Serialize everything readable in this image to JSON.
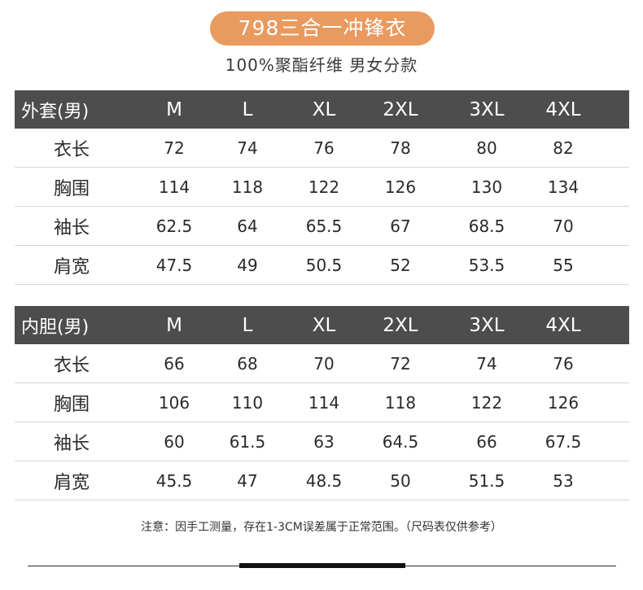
{
  "title": "798三合一冲锋衣",
  "subtitle": "100%聚酯纤维 男女分款",
  "colors": {
    "title_pill": "#e99a5f",
    "header_bar": "#4d4d4d"
  },
  "tables": [
    {
      "header": [
        "外套(男)",
        "M",
        "L",
        "XL",
        "2XL",
        "3XL",
        "4XL"
      ],
      "rows": [
        [
          "衣长",
          "72",
          "74",
          "76",
          "78",
          "80",
          "82"
        ],
        [
          "胸围",
          "114",
          "118",
          "122",
          "126",
          "130",
          "134"
        ],
        [
          "袖长",
          "62.5",
          "64",
          "65.5",
          "67",
          "68.5",
          "70"
        ],
        [
          "肩宽",
          "47.5",
          "49",
          "50.5",
          "52",
          "53.5",
          "55"
        ]
      ]
    },
    {
      "header": [
        "内胆(男)",
        "M",
        "L",
        "XL",
        "2XL",
        "3XL",
        "4XL"
      ],
      "rows": [
        [
          "衣长",
          "66",
          "68",
          "70",
          "72",
          "74",
          "76"
        ],
        [
          "胸围",
          "106",
          "110",
          "114",
          "118",
          "122",
          "126"
        ],
        [
          "袖长",
          "60",
          "61.5",
          "63",
          "64.5",
          "66",
          "67.5"
        ],
        [
          "肩宽",
          "45.5",
          "47",
          "48.5",
          "50",
          "51.5",
          "53"
        ]
      ]
    }
  ],
  "note": "注意：因手工测量，存在1-3CM误差属于正常范围。（尺码表仅供参考）"
}
